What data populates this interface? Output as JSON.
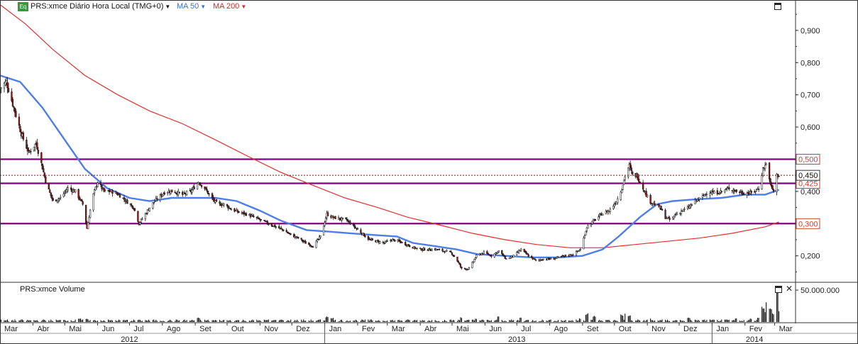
{
  "legend": {
    "badge": "Eq",
    "title": "PRS:xmce Diário Hora Local (TMG+0)",
    "ma50": "MA 50",
    "ma200": "MA 200"
  },
  "volume_panel": {
    "title": "PRS:xmce Volume",
    "axis_label": "50.000.000"
  },
  "colors": {
    "candle_up": "#ffffff",
    "candle_down": "#8b1a1a",
    "candle_wick": "#111111",
    "ma50": "#4d7ee8",
    "ma200": "#e03030",
    "level_line": "#800080",
    "level_label": "#d43c2c",
    "last_price": "#b00000",
    "volume": "#111111"
  },
  "chart_data": [
    {
      "type": "line",
      "subtype": "candlestick",
      "grid": false,
      "ylim": [
        0.12,
        0.99
      ],
      "y_ticks": [
        "0,200",
        "0,300",
        "0,400",
        "0,500",
        "0,600",
        "0,700",
        "0,800",
        "0,900"
      ],
      "y_tick_values": [
        0.2,
        0.3,
        0.4,
        0.5,
        0.6,
        0.7,
        0.8,
        0.9
      ],
      "x_range": [
        "2012-03-01",
        "2014-03-20"
      ],
      "month_labels": [
        "Mar",
        "Abr",
        "Mai",
        "Jun",
        "Jul",
        "Ago",
        "Set",
        "Out",
        "Nov",
        "Dez",
        "Jan",
        "Fev",
        "Mar",
        "Abr",
        "Mai",
        "Jun",
        "Jul",
        "Ago",
        "Set",
        "Out",
        "Nov",
        "Dez",
        "Jan",
        "Fev",
        "Mar"
      ],
      "month_dates": [
        "2012-03-01",
        "2012-04-01",
        "2012-05-01",
        "2012-06-01",
        "2012-07-01",
        "2012-08-01",
        "2012-09-01",
        "2012-10-01",
        "2012-11-01",
        "2012-12-01",
        "2013-01-01",
        "2013-02-01",
        "2013-03-01",
        "2013-04-01",
        "2013-05-01",
        "2013-06-01",
        "2013-07-01",
        "2013-08-01",
        "2013-09-01",
        "2013-10-01",
        "2013-11-01",
        "2013-12-01",
        "2014-01-01",
        "2014-02-01",
        "2014-03-01"
      ],
      "year_labels": [
        "2012",
        "2013",
        "2014"
      ],
      "year_label_dates": [
        "2012-07-01",
        "2013-07-01",
        "2014-02-10"
      ],
      "year_dividers": [
        "2013-01-01",
        "2014-01-01"
      ],
      "horizontal_levels": [
        {
          "value": 0.5,
          "label": "0,500"
        },
        {
          "value": 0.425,
          "label": "0,425"
        },
        {
          "value": 0.3,
          "label": "0,300"
        }
      ],
      "last_price": {
        "value": 0.45,
        "label": "0,450"
      },
      "price_path": [
        [
          "2012-03-01",
          0.72
        ],
        [
          "2012-03-07",
          0.74
        ],
        [
          "2012-03-14",
          0.66
        ],
        [
          "2012-03-21",
          0.58
        ],
        [
          "2012-03-28",
          0.52
        ],
        [
          "2012-04-04",
          0.55
        ],
        [
          "2012-04-08",
          0.5
        ],
        [
          "2012-04-14",
          0.42
        ],
        [
          "2012-04-20",
          0.37
        ],
        [
          "2012-04-27",
          0.38
        ],
        [
          "2012-05-04",
          0.41
        ],
        [
          "2012-05-11",
          0.4
        ],
        [
          "2012-05-18",
          0.36
        ],
        [
          "2012-05-22",
          0.285
        ],
        [
          "2012-05-27",
          0.38
        ],
        [
          "2012-06-01",
          0.43
        ],
        [
          "2012-06-07",
          0.4
        ],
        [
          "2012-06-14",
          0.4
        ],
        [
          "2012-06-21",
          0.39
        ],
        [
          "2012-06-28",
          0.37
        ],
        [
          "2012-07-05",
          0.35
        ],
        [
          "2012-07-10",
          0.3
        ],
        [
          "2012-07-16",
          0.33
        ],
        [
          "2012-07-22",
          0.36
        ],
        [
          "2012-07-28",
          0.38
        ],
        [
          "2012-08-04",
          0.4
        ],
        [
          "2012-08-12",
          0.4
        ],
        [
          "2012-08-20",
          0.39
        ],
        [
          "2012-08-28",
          0.4
        ],
        [
          "2012-09-04",
          0.43
        ],
        [
          "2012-09-10",
          0.41
        ],
        [
          "2012-09-16",
          0.38
        ],
        [
          "2012-09-22",
          0.36
        ],
        [
          "2012-09-28",
          0.36
        ],
        [
          "2012-10-05",
          0.345
        ],
        [
          "2012-10-12",
          0.335
        ],
        [
          "2012-10-19",
          0.33
        ],
        [
          "2012-10-26",
          0.32
        ],
        [
          "2012-11-02",
          0.31
        ],
        [
          "2012-11-09",
          0.3
        ],
        [
          "2012-11-16",
          0.29
        ],
        [
          "2012-11-23",
          0.28
        ],
        [
          "2012-11-30",
          0.265
        ],
        [
          "2012-12-07",
          0.255
        ],
        [
          "2012-12-14",
          0.24
        ],
        [
          "2012-12-21",
          0.23
        ],
        [
          "2012-12-28",
          0.26
        ],
        [
          "2013-01-03",
          0.33
        ],
        [
          "2013-01-08",
          0.32
        ],
        [
          "2013-01-15",
          0.315
        ],
        [
          "2013-01-22",
          0.31
        ],
        [
          "2013-01-29",
          0.29
        ],
        [
          "2013-02-05",
          0.27
        ],
        [
          "2013-02-12",
          0.25
        ],
        [
          "2013-02-19",
          0.245
        ],
        [
          "2013-02-26",
          0.24
        ],
        [
          "2013-03-05",
          0.25
        ],
        [
          "2013-03-12",
          0.245
        ],
        [
          "2013-03-19",
          0.235
        ],
        [
          "2013-03-26",
          0.225
        ],
        [
          "2013-04-02",
          0.22
        ],
        [
          "2013-04-09",
          0.22
        ],
        [
          "2013-04-16",
          0.22
        ],
        [
          "2013-04-23",
          0.215
        ],
        [
          "2013-04-30",
          0.21
        ],
        [
          "2013-05-05",
          0.19
        ],
        [
          "2013-05-10",
          0.16
        ],
        [
          "2013-05-17",
          0.16
        ],
        [
          "2013-05-24",
          0.2
        ],
        [
          "2013-05-31",
          0.21
        ],
        [
          "2013-06-07",
          0.2
        ],
        [
          "2013-06-14",
          0.215
        ],
        [
          "2013-06-21",
          0.19
        ],
        [
          "2013-06-28",
          0.2
        ],
        [
          "2013-07-05",
          0.22
        ],
        [
          "2013-07-12",
          0.2
        ],
        [
          "2013-07-19",
          0.185
        ],
        [
          "2013-07-26",
          0.19
        ],
        [
          "2013-08-02",
          0.19
        ],
        [
          "2013-08-09",
          0.195
        ],
        [
          "2013-08-16",
          0.2
        ],
        [
          "2013-08-23",
          0.205
        ],
        [
          "2013-08-30",
          0.22
        ],
        [
          "2013-09-05",
          0.29
        ],
        [
          "2013-09-12",
          0.31
        ],
        [
          "2013-09-19",
          0.33
        ],
        [
          "2013-09-26",
          0.34
        ],
        [
          "2013-10-03",
          0.37
        ],
        [
          "2013-10-08",
          0.41
        ],
        [
          "2013-10-12",
          0.46
        ],
        [
          "2013-10-15",
          0.48
        ],
        [
          "2013-10-18",
          0.45
        ],
        [
          "2013-10-22",
          0.45
        ],
        [
          "2013-10-28",
          0.41
        ],
        [
          "2013-11-03",
          0.37
        ],
        [
          "2013-11-08",
          0.36
        ],
        [
          "2013-11-13",
          0.35
        ],
        [
          "2013-11-18",
          0.32
        ],
        [
          "2013-11-23",
          0.31
        ],
        [
          "2013-11-28",
          0.33
        ],
        [
          "2013-12-04",
          0.34
        ],
        [
          "2013-12-10",
          0.35
        ],
        [
          "2013-12-16",
          0.37
        ],
        [
          "2013-12-22",
          0.38
        ],
        [
          "2013-12-28",
          0.4
        ],
        [
          "2014-01-03",
          0.395
        ],
        [
          "2014-01-10",
          0.4
        ],
        [
          "2014-01-17",
          0.41
        ],
        [
          "2014-01-24",
          0.4
        ],
        [
          "2014-01-31",
          0.395
        ],
        [
          "2014-02-07",
          0.395
        ],
        [
          "2014-02-14",
          0.41
        ],
        [
          "2014-02-18",
          0.47
        ],
        [
          "2014-02-22",
          0.49
        ],
        [
          "2014-02-25",
          0.42
        ],
        [
          "2014-02-28",
          0.4
        ],
        [
          "2014-03-03",
          0.45
        ],
        [
          "2014-03-05",
          0.45
        ]
      ],
      "ma50_path": [
        [
          "2012-03-01",
          0.76
        ],
        [
          "2012-03-20",
          0.74
        ],
        [
          "2012-04-10",
          0.66
        ],
        [
          "2012-05-01",
          0.56
        ],
        [
          "2012-05-20",
          0.47
        ],
        [
          "2012-06-10",
          0.41
        ],
        [
          "2012-07-01",
          0.38
        ],
        [
          "2012-07-20",
          0.37
        ],
        [
          "2012-08-10",
          0.38
        ],
        [
          "2012-09-01",
          0.38
        ],
        [
          "2012-09-20",
          0.38
        ],
        [
          "2012-10-10",
          0.37
        ],
        [
          "2012-11-01",
          0.34
        ],
        [
          "2012-11-20",
          0.31
        ],
        [
          "2012-12-15",
          0.28
        ],
        [
          "2013-01-05",
          0.275
        ],
        [
          "2013-01-25",
          0.27
        ],
        [
          "2013-02-15",
          0.265
        ],
        [
          "2013-03-10",
          0.26
        ],
        [
          "2013-03-25",
          0.24
        ],
        [
          "2013-04-15",
          0.23
        ],
        [
          "2013-05-05",
          0.22
        ],
        [
          "2013-05-25",
          0.205
        ],
        [
          "2013-06-20",
          0.2
        ],
        [
          "2013-07-15",
          0.195
        ],
        [
          "2013-08-10",
          0.195
        ],
        [
          "2013-09-01",
          0.2
        ],
        [
          "2013-09-20",
          0.22
        ],
        [
          "2013-10-05",
          0.26
        ],
        [
          "2013-10-25",
          0.32
        ],
        [
          "2013-11-10",
          0.36
        ],
        [
          "2013-11-25",
          0.37
        ],
        [
          "2013-12-15",
          0.375
        ],
        [
          "2014-01-10",
          0.38
        ],
        [
          "2014-02-01",
          0.39
        ],
        [
          "2014-02-20",
          0.39
        ],
        [
          "2014-03-05",
          0.405
        ]
      ],
      "ma200_path": [
        [
          "2012-03-01",
          0.98
        ],
        [
          "2012-03-25",
          0.92
        ],
        [
          "2012-04-20",
          0.84
        ],
        [
          "2012-05-20",
          0.76
        ],
        [
          "2012-06-20",
          0.7
        ],
        [
          "2012-07-20",
          0.65
        ],
        [
          "2012-08-20",
          0.61
        ],
        [
          "2012-09-20",
          0.56
        ],
        [
          "2012-10-20",
          0.51
        ],
        [
          "2012-11-20",
          0.46
        ],
        [
          "2012-12-20",
          0.42
        ],
        [
          "2013-01-20",
          0.38
        ],
        [
          "2013-02-20",
          0.35
        ],
        [
          "2013-03-20",
          0.32
        ],
        [
          "2013-04-20",
          0.295
        ],
        [
          "2013-05-20",
          0.27
        ],
        [
          "2013-06-20",
          0.25
        ],
        [
          "2013-07-20",
          0.235
        ],
        [
          "2013-08-20",
          0.225
        ],
        [
          "2013-09-20",
          0.225
        ],
        [
          "2013-10-20",
          0.235
        ],
        [
          "2013-11-20",
          0.245
        ],
        [
          "2013-12-20",
          0.255
        ],
        [
          "2014-01-20",
          0.27
        ],
        [
          "2014-02-20",
          0.29
        ],
        [
          "2014-03-05",
          0.305
        ]
      ]
    },
    {
      "type": "bar",
      "title": "PRS:xmce Volume",
      "ylim": [
        0,
        60000000
      ],
      "y_ticks": [
        "50.000.000"
      ],
      "y_tick_values": [
        50000000
      ],
      "volume_baseline": 2500000,
      "volume_spikes": [
        [
          "2012-05-15",
          6000000
        ],
        [
          "2012-05-22",
          5000000
        ],
        [
          "2012-07-10",
          3500000
        ],
        [
          "2012-09-04",
          7000000
        ],
        [
          "2012-11-20",
          3000000
        ],
        [
          "2012-12-28",
          4000000
        ],
        [
          "2013-01-03",
          9000000
        ],
        [
          "2013-01-08",
          7000000
        ],
        [
          "2013-05-10",
          8000000
        ],
        [
          "2013-05-24",
          6000000
        ],
        [
          "2013-06-14",
          10000000
        ],
        [
          "2013-07-05",
          8000000
        ],
        [
          "2013-08-30",
          6000000
        ],
        [
          "2013-09-05",
          14000000
        ],
        [
          "2013-09-12",
          10000000
        ],
        [
          "2013-10-08",
          12000000
        ],
        [
          "2013-10-12",
          15000000
        ],
        [
          "2013-10-15",
          11000000
        ],
        [
          "2013-11-03",
          6000000
        ],
        [
          "2013-12-10",
          7000000
        ],
        [
          "2014-01-24",
          6000000
        ],
        [
          "2014-02-07",
          6000000
        ],
        [
          "2014-02-14",
          8000000
        ],
        [
          "2014-02-18",
          26000000
        ],
        [
          "2014-02-20",
          18000000
        ],
        [
          "2014-02-22",
          32000000
        ],
        [
          "2014-02-25",
          22000000
        ],
        [
          "2014-02-28",
          14000000
        ],
        [
          "2014-03-03",
          54000000
        ],
        [
          "2014-03-04",
          20000000
        ]
      ]
    }
  ]
}
